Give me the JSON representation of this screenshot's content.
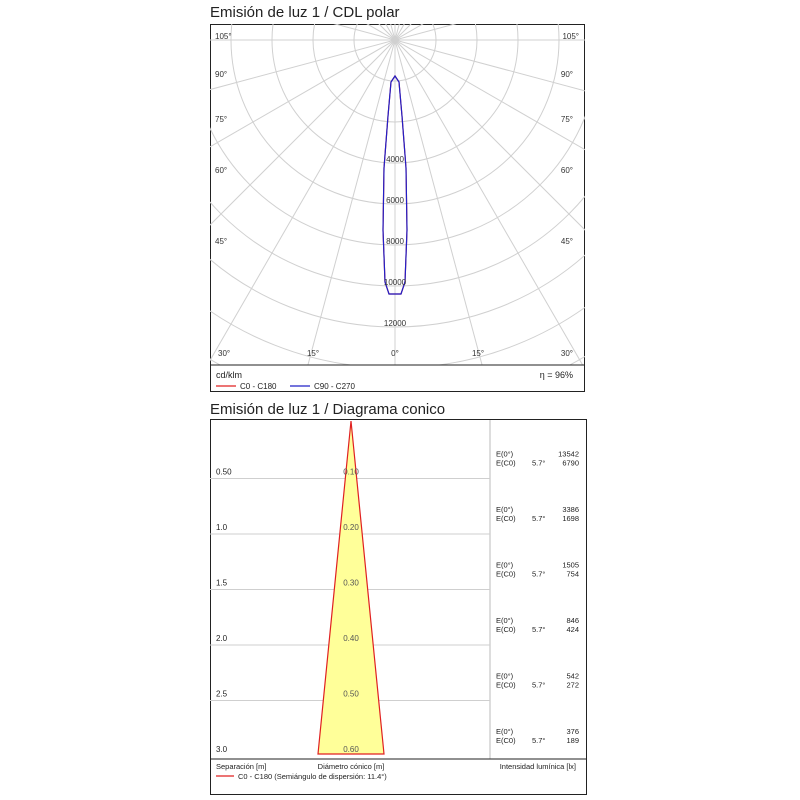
{
  "polar": {
    "title": "Emisión de luz 1 / CDL polar",
    "unit": "cd/klm",
    "efficiency": "η = 96%",
    "left_angle_labels": [
      "105°",
      "90°",
      "75°",
      "60°",
      "45°",
      "30°"
    ],
    "right_angle_labels": [
      "105°",
      "90°",
      "75°",
      "60°",
      "45°",
      "30°"
    ],
    "bottom_labels": [
      "30°",
      "15°",
      "0°",
      "15°",
      "30°"
    ],
    "radial_labels": [
      "4000",
      "6000",
      "8000",
      "10000",
      "12000"
    ],
    "legend": [
      {
        "label": "C0 - C180",
        "color": "#e02020"
      },
      {
        "label": "C90 - C270",
        "color": "#2020c8"
      }
    ]
  },
  "cone": {
    "title": "Emisión de luz 1 / Diagrama conico",
    "axis_separation": "Separación [m]",
    "axis_diameter": "Diámetro cónico [m]",
    "axis_intensity": "Intensidad lumínica [lx]",
    "legend": "C0 - C180 (Semiángulo de dispersión: 11.4°)",
    "fill_color": "#ffff99",
    "line_color": "#e02020",
    "rows": [
      {
        "separation": "0.50",
        "diameter": "0.10",
        "e0_label": "E(0°)",
        "e0": "13542",
        "ec_label": "E(C0)",
        "angle": "5.7°",
        "ec": "6790"
      },
      {
        "separation": "1.0",
        "diameter": "0.20",
        "e0_label": "E(0°)",
        "e0": "3386",
        "ec_label": "E(C0)",
        "angle": "5.7°",
        "ec": "1698"
      },
      {
        "separation": "1.5",
        "diameter": "0.30",
        "e0_label": "E(0°)",
        "e0": "1505",
        "ec_label": "E(C0)",
        "angle": "5.7°",
        "ec": "754"
      },
      {
        "separation": "2.0",
        "diameter": "0.40",
        "e0_label": "E(0°)",
        "e0": "846",
        "ec_label": "E(C0)",
        "angle": "5.7°",
        "ec": "424"
      },
      {
        "separation": "2.5",
        "diameter": "0.50",
        "e0_label": "E(0°)",
        "e0": "542",
        "ec_label": "E(C0)",
        "angle": "5.7°",
        "ec": "272"
      },
      {
        "separation": "3.0",
        "diameter": "0.60",
        "e0_label": "E(0°)",
        "e0": "376",
        "ec_label": "E(C0)",
        "angle": "5.7°",
        "ec": "189"
      }
    ]
  }
}
